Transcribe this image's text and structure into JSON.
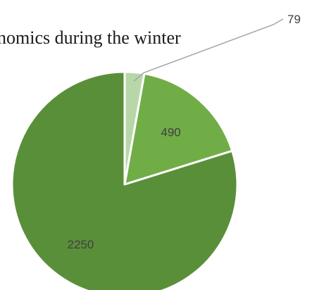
{
  "chart_data": {
    "type": "pie",
    "title": "nomics during the winter",
    "values": [
      79,
      490,
      2250
    ],
    "labels": [
      "79",
      "490",
      "2250"
    ],
    "colors": [
      "#b7d7a8",
      "#70ad47",
      "#5a8f3a"
    ]
  }
}
